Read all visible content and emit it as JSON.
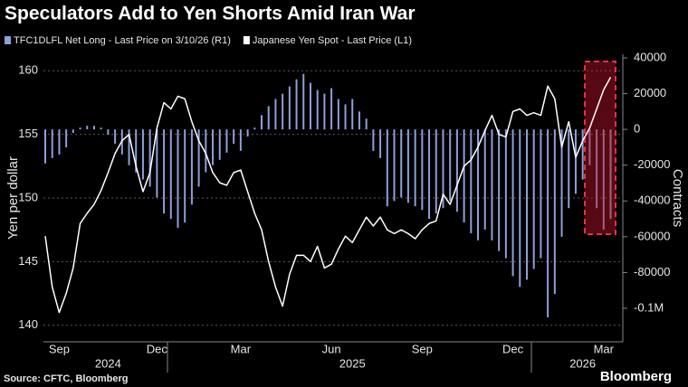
{
  "chart_data": {
    "type": "combo",
    "title": "Speculators Add to Yen Shorts Amid Iran War",
    "categories": [
      null,
      null,
      "Sep",
      null,
      null,
      null,
      null,
      null,
      null,
      null,
      null,
      null,
      null,
      null,
      null,
      null,
      "Dec",
      null,
      null,
      null,
      null,
      null,
      null,
      null,
      null,
      null,
      null,
      null,
      "Mar",
      null,
      null,
      null,
      null,
      null,
      null,
      null,
      null,
      null,
      null,
      null,
      null,
      "Jun",
      null,
      null,
      null,
      null,
      null,
      null,
      null,
      null,
      null,
      null,
      null,
      null,
      "Sep",
      null,
      null,
      null,
      null,
      null,
      null,
      null,
      null,
      null,
      null,
      null,
      null,
      "Dec",
      null,
      null,
      null,
      null,
      null,
      null,
      null,
      null,
      null,
      null,
      null,
      null,
      "Mar",
      null
    ],
    "year_categories": [
      null,
      null,
      null,
      null,
      null,
      null,
      null,
      null,
      null,
      "2024",
      null,
      null,
      null,
      null,
      null,
      null,
      null,
      null,
      null,
      null,
      null,
      null,
      null,
      null,
      null,
      null,
      null,
      null,
      null,
      null,
      null,
      null,
      null,
      null,
      null,
      null,
      null,
      null,
      null,
      null,
      null,
      null,
      null,
      null,
      "2025",
      null,
      null,
      null,
      null,
      null,
      null,
      null,
      null,
      null,
      null,
      null,
      null,
      null,
      null,
      null,
      null,
      null,
      null,
      null,
      null,
      null,
      null,
      null,
      null,
      null,
      null,
      null,
      null,
      null,
      null,
      null,
      null,
      "2026",
      null,
      null,
      null,
      null
    ],
    "series": [
      {
        "name": "TFC1DLFL Net Long - Last Price on 3/10/26 (R1)",
        "type": "bar",
        "axis": "y2",
        "color": "#8e9fd9",
        "values": [
          -19000,
          -16000,
          -14000,
          -10000,
          -2000,
          1000,
          2000,
          2000,
          1000,
          -3000,
          -8000,
          -14000,
          -20000,
          -24000,
          -28000,
          -32000,
          -38000,
          -47000,
          -50000,
          -55000,
          -52000,
          -42000,
          -32000,
          -24000,
          -20000,
          -17000,
          -13000,
          -8000,
          -12000,
          -4000,
          1000,
          8000,
          13000,
          17000,
          20000,
          24000,
          28000,
          31000,
          26000,
          22000,
          20000,
          23000,
          17000,
          14000,
          17000,
          10000,
          6000,
          -12000,
          -16000,
          -43000,
          -40000,
          -38000,
          -41000,
          -43000,
          -45000,
          -50000,
          -47000,
          -44000,
          -40000,
          -46000,
          -52000,
          -58000,
          -62000,
          -56000,
          -62000,
          -68000,
          -72000,
          -82000,
          -88000,
          -84000,
          -78000,
          -72000,
          -105000,
          -92000,
          -60000,
          -44000,
          -36000,
          -28000,
          -20000,
          -44000,
          -56000,
          -50000
        ]
      },
      {
        "name": "Japanese Yen Spot - Last Price (L1)",
        "type": "line",
        "axis": "y",
        "color": "#ffffff",
        "values": [
          147.0,
          143.0,
          141.0,
          142.5,
          144.5,
          148.0,
          148.8,
          149.5,
          150.6,
          152.0,
          153.5,
          154.5,
          155.0,
          152.5,
          150.5,
          152.0,
          155.5,
          157.5,
          157.0,
          158.0,
          157.8,
          156.0,
          154.5,
          153.5,
          152.0,
          151.2,
          151.0,
          152.0,
          152.2,
          150.5,
          148.8,
          147.5,
          145.0,
          143.0,
          141.5,
          144.0,
          145.5,
          145.5,
          145.0,
          146.2,
          144.5,
          144.8,
          146.0,
          147.0,
          146.5,
          147.5,
          148.5,
          147.8,
          148.5,
          147.5,
          147.2,
          147.5,
          147.2,
          146.8,
          147.5,
          148.0,
          148.2,
          150.3,
          149.5,
          151.0,
          152.5,
          153.0,
          154.0,
          155.3,
          156.5,
          155.0,
          154.8,
          156.8,
          157.0,
          156.5,
          156.7,
          156.5,
          158.8,
          157.8,
          154.0,
          156.0,
          153.2,
          154.5,
          155.5,
          157.0,
          158.5,
          159.5
        ]
      }
    ],
    "ylabel": "Yen per dollar",
    "y2label": "Contracts",
    "ylim": [
      138.7,
      161.3
    ],
    "yticks": [
      140,
      145,
      150,
      155,
      160
    ],
    "y2lim": [
      -118700,
      42000
    ],
    "y2ticks": [
      {
        "value": -100000,
        "label": "-0.1M"
      },
      -80000,
      -60000,
      -40000,
      -20000,
      0,
      20000,
      40000
    ],
    "grid": true,
    "source": "Source: CFTC, Bloomberg",
    "brand": "Bloomberg"
  }
}
